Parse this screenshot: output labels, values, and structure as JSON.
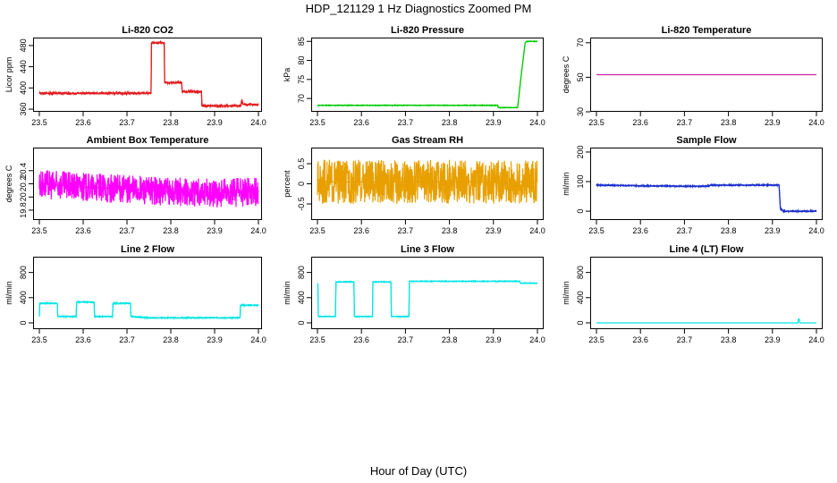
{
  "figure": {
    "title": "HDP_121129  1 Hz Diagnostics Zoomed PM",
    "xlabel": "Hour of Day (UTC)"
  },
  "chart_data": [
    {
      "type": "line",
      "title": "Li-820 CO2",
      "ylabel": "Licor ppm",
      "color": "#e31a1c",
      "xlim": [
        23.5,
        24.0
      ],
      "xticks": [
        "23.5",
        "23.6",
        "23.7",
        "23.8",
        "23.9",
        "24.0"
      ],
      "ylim": [
        355,
        495
      ],
      "yticks": [
        360,
        400,
        440,
        480
      ],
      "noise": 2,
      "x": [
        23.5,
        23.755,
        23.756,
        23.785,
        23.786,
        23.825,
        23.826,
        23.87,
        23.871,
        23.96,
        23.962,
        23.965,
        23.966,
        24.0
      ],
      "y": [
        390,
        390,
        485,
        485,
        410,
        410,
        393,
        393,
        366,
        366,
        378,
        369,
        369,
        368
      ]
    },
    {
      "type": "line",
      "title": "Li-820 Pressure",
      "ylabel": "kPa",
      "color": "#00cc00",
      "xlim": [
        23.5,
        24.0
      ],
      "xticks": [
        "23.5",
        "23.6",
        "23.7",
        "23.8",
        "23.9",
        "24.0"
      ],
      "ylim": [
        66.5,
        86
      ],
      "yticks": [
        70,
        75,
        80,
        85
      ],
      "noise": 0.08,
      "x": [
        23.5,
        23.91,
        23.911,
        23.955,
        23.962,
        23.972,
        23.975,
        24.0
      ],
      "y": [
        68.2,
        68.2,
        67.6,
        67.6,
        75,
        84.5,
        85.0,
        85.0
      ]
    },
    {
      "type": "line",
      "title": "Li-820 Temperature",
      "ylabel": "degrees C",
      "color": "#cc22aa",
      "xlim": [
        23.5,
        24.0
      ],
      "xticks": [
        "23.5",
        "23.6",
        "23.7",
        "23.8",
        "23.9",
        "24.0"
      ],
      "ylim": [
        30,
        73
      ],
      "yticks": [
        30,
        50,
        70
      ],
      "noise": 0,
      "x": [
        23.5,
        24.0
      ],
      "y": [
        51.5,
        51.5
      ]
    },
    {
      "type": "line",
      "title": "Ambient Box Temperature",
      "ylabel": "degrees C",
      "color": "#ff00ff",
      "xlim": [
        23.5,
        24.0
      ],
      "xticks": [
        "23.5",
        "23.6",
        "23.7",
        "23.8",
        "23.9",
        "24.0"
      ],
      "ylim": [
        19.65,
        20.75
      ],
      "yticks": [
        19.8,
        20.0,
        20.2,
        20.4
      ],
      "noise": 0.22,
      "x": [
        23.5,
        23.6,
        23.7,
        23.8,
        23.9,
        24.0
      ],
      "y": [
        20.2,
        20.15,
        20.12,
        20.08,
        20.06,
        20.08
      ]
    },
    {
      "type": "line",
      "title": "Gas Stream RH",
      "ylabel": "percent",
      "color": "#e8a000",
      "xlim": [
        23.5,
        24.0
      ],
      "xticks": [
        "23.5",
        "23.6",
        "23.7",
        "23.8",
        "23.9",
        "24.0"
      ],
      "ylim": [
        -0.9,
        0.9
      ],
      "yticks": [
        -0.5,
        0.0,
        0.5
      ],
      "noise": 0.55,
      "x": [
        23.5,
        24.0
      ],
      "y": [
        0.05,
        0.05
      ]
    },
    {
      "type": "line",
      "title": "Sample Flow",
      "ylabel": "ml/min",
      "color": "#1a2fcc",
      "xlim": [
        23.5,
        24.0
      ],
      "xticks": [
        "23.5",
        "23.6",
        "23.7",
        "23.8",
        "23.9",
        "24.0"
      ],
      "ylim": [
        -30,
        215
      ],
      "yticks": [
        0,
        100,
        200
      ],
      "noise": 2,
      "x": [
        23.5,
        23.6,
        23.65,
        23.75,
        23.76,
        23.915,
        23.918,
        23.925,
        24.0
      ],
      "y": [
        88,
        86,
        85,
        84,
        88,
        88,
        10,
        0,
        0
      ]
    },
    {
      "type": "line",
      "title": "Line 2 Flow",
      "ylabel": "ml/min",
      "color": "#00e5e5",
      "xlim": [
        23.5,
        24.0
      ],
      "xticks": [
        "23.5",
        "23.6",
        "23.7",
        "23.8",
        "23.9",
        "24.0"
      ],
      "ylim": [
        -100,
        1050
      ],
      "yticks": [
        0,
        400,
        800
      ],
      "noise": 8,
      "x": [
        23.5,
        23.501,
        23.541,
        23.542,
        23.584,
        23.585,
        23.625,
        23.626,
        23.667,
        23.668,
        23.708,
        23.709,
        23.75,
        23.958,
        23.959,
        24.0
      ],
      "y": [
        100,
        310,
        310,
        100,
        100,
        330,
        330,
        100,
        100,
        310,
        310,
        100,
        80,
        80,
        280,
        280
      ]
    },
    {
      "type": "line",
      "title": "Line 3 Flow",
      "ylabel": "ml/min",
      "color": "#00e5e5",
      "xlim": [
        23.5,
        24.0
      ],
      "xticks": [
        "23.5",
        "23.6",
        "23.7",
        "23.8",
        "23.9",
        "24.0"
      ],
      "ylim": [
        -100,
        1050
      ],
      "yticks": [
        0,
        400,
        800
      ],
      "noise": 6,
      "x": [
        23.5,
        23.501,
        23.502,
        23.541,
        23.542,
        23.583,
        23.584,
        23.625,
        23.626,
        23.667,
        23.668,
        23.708,
        23.709,
        23.96,
        23.961,
        24.0
      ],
      "y": [
        620,
        620,
        100,
        100,
        650,
        650,
        100,
        100,
        650,
        650,
        100,
        100,
        660,
        660,
        630,
        630
      ]
    },
    {
      "type": "line",
      "title": "Line 4 (LT) Flow",
      "ylabel": "ml/min",
      "color": "#00e5e5",
      "xlim": [
        23.5,
        24.0
      ],
      "xticks": [
        "23.5",
        "23.6",
        "23.7",
        "23.8",
        "23.9",
        "24.0"
      ],
      "ylim": [
        -100,
        1050
      ],
      "yticks": [
        0,
        400,
        800
      ],
      "noise": 0,
      "x": [
        23.5,
        23.958,
        23.959,
        23.961,
        23.962,
        24.0
      ],
      "y": [
        0,
        0,
        60,
        60,
        0,
        0
      ]
    }
  ]
}
